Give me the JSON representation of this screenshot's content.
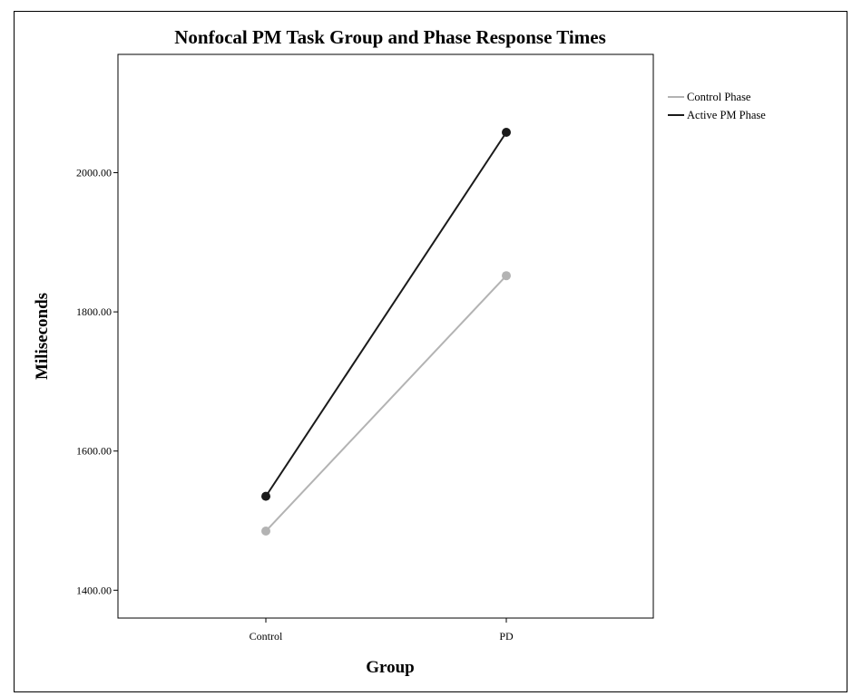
{
  "chart_data": {
    "type": "line",
    "title": "Nonfocal PM Task Group and Phase Response Times",
    "xlabel": "Group",
    "ylabel": "Miliseconds",
    "categories": [
      "Control",
      "PD"
    ],
    "ylim": [
      1360,
      2170
    ],
    "yticks": [
      1400,
      1600,
      1800,
      2000
    ],
    "ytick_labels": [
      "1400.00",
      "1600.00",
      "1800.00",
      "2000.00"
    ],
    "grid": false,
    "legend_position": "top-right, outside plot",
    "series": [
      {
        "name": "Control Phase",
        "values": [
          1485,
          1852
        ],
        "color": "#b3b3b3"
      },
      {
        "name": "Active PM Phase",
        "values": [
          1535,
          2058
        ],
        "color": "#1a1a1a"
      }
    ]
  }
}
